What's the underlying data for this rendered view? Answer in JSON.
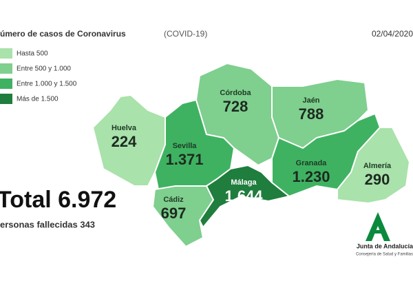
{
  "header": {
    "title": "úmero de casos de Coronavirus",
    "subtitle": "(COVID-19)",
    "date": "02/04/2020"
  },
  "legend": [
    {
      "label": "Hasta 500",
      "color": "#a9e2ab"
    },
    {
      "label": "Entre 500 y 1.000",
      "color": "#7fcf8e"
    },
    {
      "label": "Entre 1.000 y 1.500",
      "color": "#3fb262"
    },
    {
      "label": "Más de 1.500",
      "color": "#1f7d3d"
    }
  ],
  "provinces": [
    {
      "name": "Huelva",
      "value": "224",
      "color": "#a9e2ab"
    },
    {
      "name": "Sevilla",
      "value": "1.371",
      "color": "#3fb262"
    },
    {
      "name": "Córdoba",
      "value": "728",
      "color": "#7fcf8e"
    },
    {
      "name": "Jaén",
      "value": "788",
      "color": "#7fcf8e"
    },
    {
      "name": "Granada",
      "value": "1.230",
      "color": "#3fb262"
    },
    {
      "name": "Almería",
      "value": "290",
      "color": "#a9e2ab"
    },
    {
      "name": "Cádiz",
      "value": "697",
      "color": "#7fcf8e"
    },
    {
      "name": "Málaga",
      "value": "1.644",
      "color": "#1f7d3d"
    }
  ],
  "total": "Total 6.972",
  "deaths": "ersonas fallecidas 343",
  "logo": {
    "name": "Junta de Andalucía",
    "department": "Consejería de Salud y Familias"
  }
}
